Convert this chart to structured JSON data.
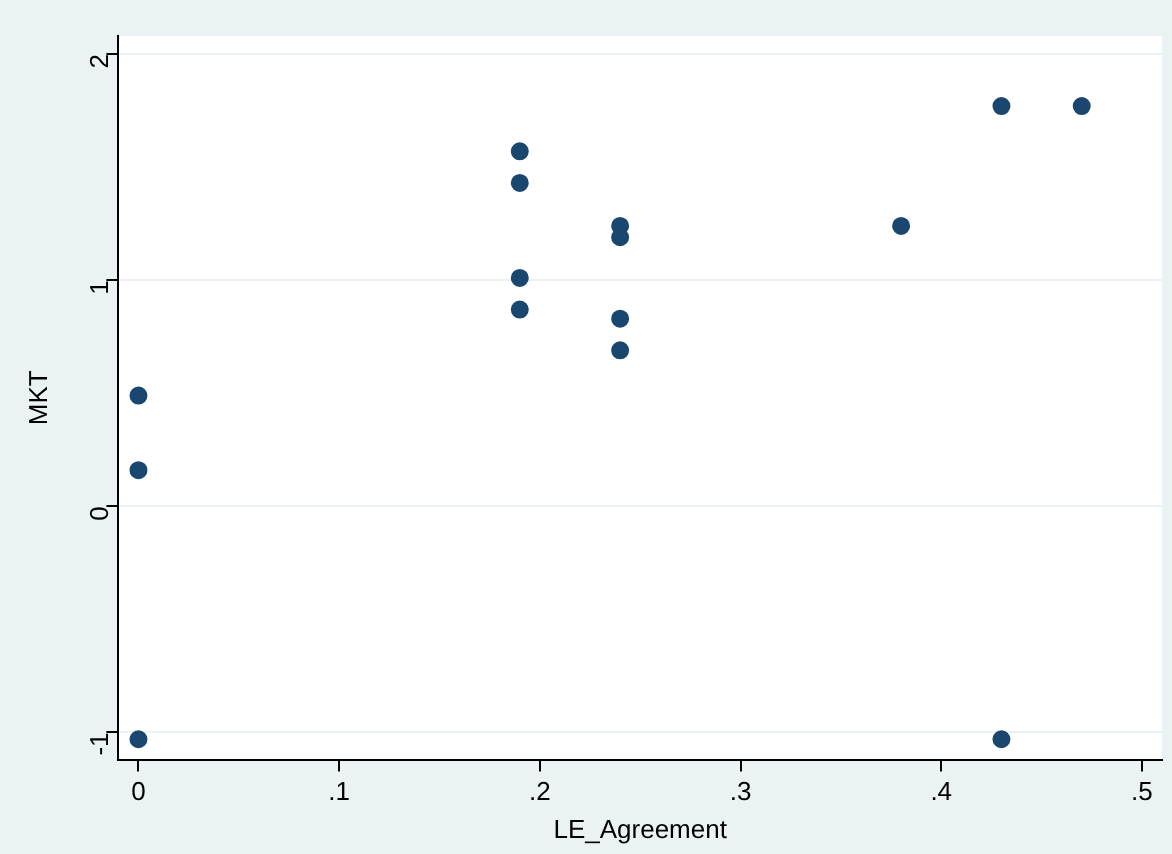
{
  "chart_data": {
    "type": "scatter",
    "xlabel": "LE_Agreement",
    "ylabel": "MKT",
    "x": [
      0,
      0,
      0,
      0.19,
      0.19,
      0.19,
      0.19,
      0.24,
      0.24,
      0.24,
      0.24,
      0.38,
      0.43,
      0.43,
      0.47
    ],
    "values": [
      0.49,
      0.16,
      -1.03,
      1.57,
      1.43,
      1.01,
      0.87,
      1.24,
      1.19,
      0.83,
      0.69,
      1.24,
      1.77,
      -1.03,
      1.77
    ],
    "color": "#1a476f",
    "marker": "circle",
    "grid": "y",
    "legend": false,
    "xlim": [
      -0.01,
      0.51
    ],
    "ylim": [
      -1.12,
      2.08
    ],
    "xticks": [
      0,
      {
        "value": 0.1,
        "label": ".1"
      },
      {
        "value": 0.2,
        "label": ".2"
      },
      {
        "value": 0.3,
        "label": ".3"
      },
      {
        "value": 0.4,
        "label": ".4"
      },
      {
        "value": 0.5,
        "label": ".5"
      }
    ],
    "yticks": [
      -1,
      0,
      1,
      2
    ]
  }
}
